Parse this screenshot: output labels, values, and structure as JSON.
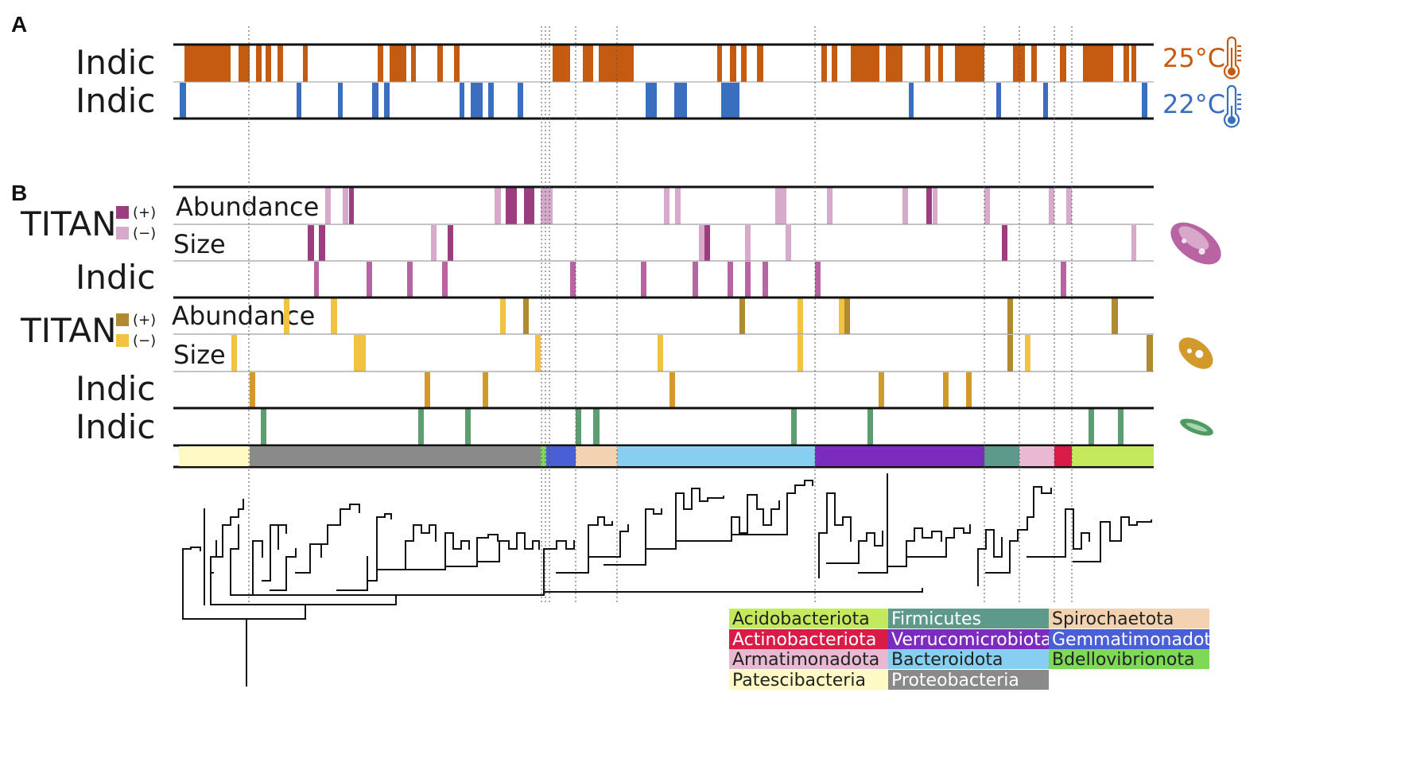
{
  "panels": {
    "a": "A",
    "b": "B"
  },
  "panel_a": {
    "row1_label": "Indic",
    "row2_label": "Indic",
    "temp1": {
      "label": "25°C",
      "color": "#C55A11"
    },
    "temp2": {
      "label": "22°C",
      "color": "#3A6EBF"
    },
    "row1_bars": [
      [
        232,
        290
      ],
      [
        300,
        314
      ],
      [
        322,
        329
      ],
      [
        334,
        341
      ],
      [
        349,
        356
      ],
      [
        381,
        387
      ],
      [
        475,
        482
      ],
      [
        490,
        511
      ],
      [
        517,
        523
      ],
      [
        550,
        557
      ],
      [
        571,
        578
      ],
      [
        695,
        717
      ],
      [
        733,
        746
      ],
      [
        753,
        797
      ],
      [
        902,
        908
      ],
      [
        918,
        926
      ],
      [
        932,
        939
      ],
      [
        952,
        960
      ],
      [
        1033,
        1040
      ],
      [
        1046,
        1053
      ],
      [
        1070,
        1106
      ],
      [
        1114,
        1135
      ],
      [
        1163,
        1170
      ],
      [
        1180,
        1186
      ],
      [
        1201,
        1238
      ],
      [
        1274,
        1289
      ],
      [
        1297,
        1304
      ],
      [
        1333,
        1341
      ],
      [
        1362,
        1400
      ],
      [
        1413,
        1420
      ],
      [
        1423,
        1429
      ]
    ],
    "row2_bars": [
      [
        226,
        234
      ],
      [
        373,
        379
      ],
      [
        425,
        431
      ],
      [
        468,
        476
      ],
      [
        483,
        490
      ],
      [
        578,
        584
      ],
      [
        592,
        607
      ],
      [
        614,
        621
      ],
      [
        651,
        658
      ],
      [
        812,
        826
      ],
      [
        848,
        864
      ],
      [
        907,
        930
      ],
      [
        1143,
        1149
      ],
      [
        1253,
        1259
      ],
      [
        1312,
        1318
      ],
      [
        1436,
        1443
      ]
    ]
  },
  "panel_b": {
    "titan1": {
      "label": "TITAN",
      "plus": "(+)",
      "minus": "(−)",
      "plus_color": "#9B3D7E",
      "minus_color": "#D7A9CB"
    },
    "titan2": {
      "label": "TITAN",
      "plus": "(+)",
      "minus": "(−)",
      "plus_color": "#B08A31",
      "minus_color": "#F2C340"
    },
    "rows": [
      {
        "label": "Abundance",
        "bars": [
          [
            409,
            416,
            "#D7A9CB"
          ],
          [
            431,
            438,
            "#D7A9CB"
          ],
          [
            439,
            445,
            "#9B3D7E"
          ],
          [
            622,
            630,
            "#D7A9CB"
          ],
          [
            636,
            650,
            "#9B3D7E"
          ],
          [
            659,
            672,
            "#9B3D7E"
          ],
          [
            680,
            695,
            "#D7A9CB"
          ],
          [
            835,
            842,
            "#D7A9CB"
          ],
          [
            849,
            856,
            "#D7A9CB"
          ],
          [
            975,
            989,
            "#D7A9CB"
          ],
          [
            1040,
            1047,
            "#D7A9CB"
          ],
          [
            1135,
            1142,
            "#D7A9CB"
          ],
          [
            1165,
            1172,
            "#9B3D7E"
          ],
          [
            1173,
            1179,
            "#D7A9CB"
          ],
          [
            1238,
            1245,
            "#D7A9CB"
          ],
          [
            1319,
            1326,
            "#D7A9CB"
          ],
          [
            1341,
            1348,
            "#D7A9CB"
          ]
        ]
      },
      {
        "label": "Size",
        "bars": [
          [
            387,
            395,
            "#9B3D7E"
          ],
          [
            401,
            409,
            "#9B3D7E"
          ],
          [
            542,
            549,
            "#D7A9CB"
          ],
          [
            563,
            570,
            "#9B3D7E"
          ],
          [
            879,
            886,
            "#D7A9CB"
          ],
          [
            886,
            893,
            "#9B3D7E"
          ],
          [
            937,
            944,
            "#D7A9CB"
          ],
          [
            988,
            995,
            "#D7A9CB"
          ],
          [
            1260,
            1267,
            "#9B3D7E"
          ],
          [
            1423,
            1429,
            "#D7A9CB"
          ]
        ]
      },
      {
        "label": "Indic",
        "bars": [
          [
            395,
            401,
            "#B864A3"
          ],
          [
            461,
            468,
            "#B864A3"
          ],
          [
            512,
            519,
            "#B864A3"
          ],
          [
            556,
            563,
            "#B864A3"
          ],
          [
            717,
            724,
            "#B864A3"
          ],
          [
            806,
            813,
            "#B864A3"
          ],
          [
            871,
            878,
            "#B864A3"
          ],
          [
            915,
            922,
            "#B864A3"
          ],
          [
            937,
            944,
            "#B864A3"
          ],
          [
            959,
            966,
            "#B864A3"
          ],
          [
            1025,
            1032,
            "#B864A3"
          ],
          [
            1334,
            1341,
            "#B864A3"
          ]
        ]
      },
      {
        "label": "Abundance",
        "bars": [
          [
            357,
            364,
            "#F2C340"
          ],
          [
            416,
            424,
            "#F2C340"
          ],
          [
            629,
            636,
            "#F2C340"
          ],
          [
            658,
            665,
            "#B08A31"
          ],
          [
            930,
            937,
            "#B08A31"
          ],
          [
            1003,
            1010,
            "#F2C340"
          ],
          [
            1055,
            1062,
            "#F2C340"
          ],
          [
            1062,
            1069,
            "#B08A31"
          ],
          [
            1267,
            1274,
            "#B08A31"
          ],
          [
            1398,
            1406,
            "#B08A31"
          ]
        ]
      },
      {
        "label": "Size",
        "bars": [
          [
            291,
            298,
            "#F2C340"
          ],
          [
            445,
            460,
            "#F2C340"
          ],
          [
            673,
            680,
            "#F2C340"
          ],
          [
            827,
            834,
            "#F2C340"
          ],
          [
            1003,
            1010,
            "#F2C340"
          ],
          [
            1267,
            1274,
            "#B08A31"
          ],
          [
            1289,
            1296,
            "#F2C340"
          ],
          [
            1442,
            1450,
            "#B08A31"
          ]
        ]
      },
      {
        "label": "Indic",
        "bars": [
          [
            314,
            321,
            "#D19A2A"
          ],
          [
            534,
            541,
            "#D19A2A"
          ],
          [
            607,
            614,
            "#D19A2A"
          ],
          [
            842,
            849,
            "#D19A2A"
          ],
          [
            1105,
            1112,
            "#D19A2A"
          ],
          [
            1186,
            1193,
            "#D19A2A"
          ],
          [
            1215,
            1222,
            "#D19A2A"
          ]
        ]
      },
      {
        "label": "Indic",
        "bars": [
          [
            328,
            335,
            "#5C9E70"
          ],
          [
            526,
            533,
            "#5C9E70"
          ],
          [
            585,
            592,
            "#5C9E70"
          ],
          [
            724,
            731,
            "#5C9E70"
          ],
          [
            746,
            754,
            "#5C9E70"
          ],
          [
            995,
            1002,
            "#5C9E70"
          ],
          [
            1091,
            1098,
            "#5C9E70"
          ],
          [
            1369,
            1376,
            "#5C9E70"
          ],
          [
            1406,
            1413,
            "#5C9E70"
          ]
        ]
      }
    ],
    "phylum_strip": [
      [
        225,
        314,
        "#FFF9C5"
      ],
      [
        314,
        680,
        "#8A8A8A"
      ],
      [
        680,
        687,
        "#7ED957"
      ],
      [
        687,
        724,
        "#4A5FD6"
      ],
      [
        724,
        776,
        "#F2D2B0"
      ],
      [
        776,
        1025,
        "#86CFF0"
      ],
      [
        1025,
        1238,
        "#7B2CBF"
      ],
      [
        1238,
        1282,
        "#5E9A8C"
      ],
      [
        1282,
        1326,
        "#E9B8D2"
      ],
      [
        1326,
        1348,
        "#D81B47"
      ],
      [
        1348,
        1451,
        "#C4E95C"
      ]
    ]
  },
  "dotted_lines_x": [
    313,
    681,
    686,
    691,
    724,
    776,
    1025,
    1238,
    1282,
    1326,
    1348
  ],
  "legend": [
    [
      {
        "label": "Acidobacteriota",
        "bg": "#C4E95C",
        "fg": "#222222"
      },
      {
        "label": "Firmicutes",
        "bg": "#5E9A8C",
        "fg": "#ffffff"
      },
      {
        "label": "Spirochaetota",
        "bg": "#F2D2B0",
        "fg": "#222222"
      }
    ],
    [
      {
        "label": "Actinobacteriota",
        "bg": "#D81B47",
        "fg": "#ffffff"
      },
      {
        "label": "Verrucomicrobiota",
        "bg": "#7B2CBF",
        "fg": "#ffffff"
      },
      {
        "label": "Gemmatimonadota",
        "bg": "#4A5FD6",
        "fg": "#ffffff"
      }
    ],
    [
      {
        "label": "Armatimonadota",
        "bg": "#E9B8D2",
        "fg": "#222222"
      },
      {
        "label": "Bacteroidota",
        "bg": "#86CFF0",
        "fg": "#222222"
      },
      {
        "label": "Bdellovibrionota",
        "bg": "#7ED957",
        "fg": "#222222"
      }
    ],
    [
      {
        "label": "Patescibacteria",
        "bg": "#FFF9C5",
        "fg": "#222222"
      },
      {
        "label": "Proteobacteria",
        "bg": "#8A8A8A",
        "fg": "#ffffff"
      }
    ]
  ]
}
